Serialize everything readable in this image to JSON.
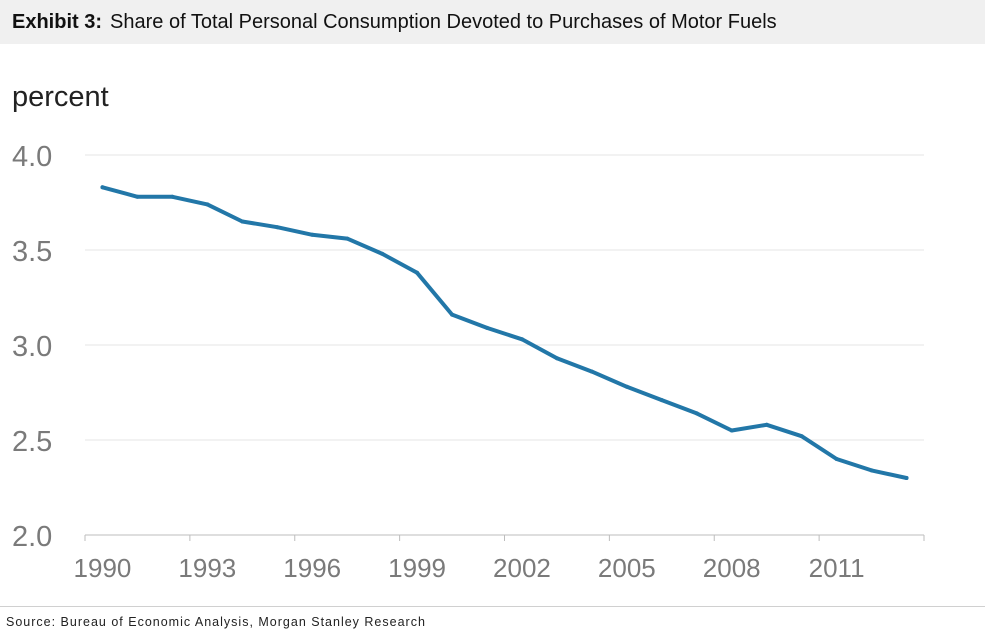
{
  "exhibit": {
    "label": "Exhibit 3:",
    "title": "Share of Total Personal Consumption Devoted to Purchases of Motor Fuels"
  },
  "source": "Source: Bureau of Economic Analysis, Morgan Stanley Research",
  "colors": {
    "line": "#2277a8",
    "grid": "#e4e4e4",
    "tick_text": "#7a7a7a",
    "unit_text": "#222222",
    "title_bg": "#f0f0f0"
  },
  "chart_data": {
    "type": "line",
    "ylabel": "percent",
    "ylim": [
      2.0,
      4.0
    ],
    "y_ticks": [
      "2.0",
      "2.5",
      "3.0",
      "3.5",
      "4.0"
    ],
    "x_ticks": [
      "1990",
      "1993",
      "1996",
      "1999",
      "2002",
      "2005",
      "2008",
      "2011"
    ],
    "grid": true,
    "series": [
      {
        "x": [
          1990,
          1991,
          1992,
          1993,
          1994,
          1995,
          1996,
          1997,
          1998,
          1999,
          2000,
          2001,
          2002,
          2003,
          2004,
          2005,
          2006,
          2007,
          2008,
          2009,
          2010,
          2011,
          2012,
          2013
        ],
        "values": [
          3.83,
          3.78,
          3.78,
          3.74,
          3.65,
          3.62,
          3.58,
          3.56,
          3.48,
          3.38,
          3.16,
          3.09,
          3.03,
          2.93,
          2.86,
          2.78,
          2.71,
          2.64,
          2.55,
          2.58,
          2.52,
          2.4,
          2.34,
          2.3
        ]
      }
    ]
  }
}
